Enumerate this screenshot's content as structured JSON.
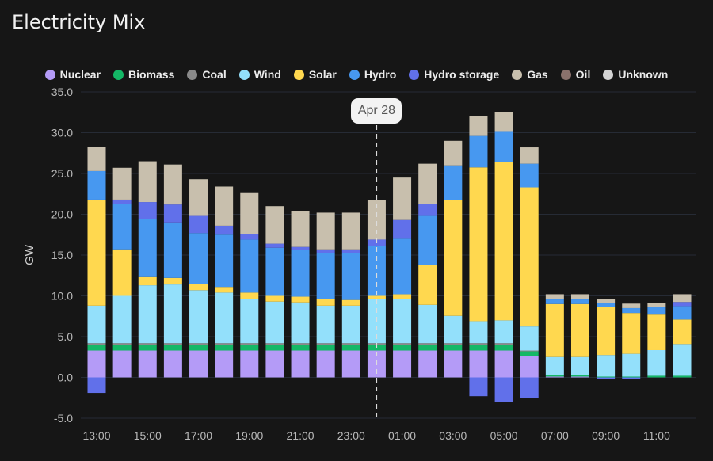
{
  "title": "Electricity Mix",
  "chart_data": {
    "type": "bar",
    "stacked": true,
    "ylabel": "GW",
    "xlabel": "",
    "ylim": [
      -5,
      35
    ],
    "yticks": [
      "35.0",
      "30.0",
      "25.0",
      "20.0",
      "15.0",
      "10.0",
      "5.0",
      "0.0",
      "-5.0"
    ],
    "ytick_values": [
      35,
      30,
      25,
      20,
      15,
      10,
      5,
      0,
      -5
    ],
    "grid": true,
    "legend_position": "top",
    "categories": [
      "13:00",
      "14:00",
      "15:00",
      "16:00",
      "17:00",
      "18:00",
      "19:00",
      "20:00",
      "21:00",
      "22:00",
      "23:00",
      "00:00",
      "01:00",
      "02:00",
      "03:00",
      "04:00",
      "05:00",
      "06:00",
      "07:00",
      "08:00",
      "09:00",
      "10:00",
      "11:00",
      "12:00"
    ],
    "xtick_labels": [
      "13:00",
      "15:00",
      "17:00",
      "19:00",
      "21:00",
      "23:00",
      "01:00",
      "03:00",
      "05:00",
      "07:00",
      "09:00",
      "11:00"
    ],
    "annotation": {
      "label": "Apr 28",
      "at": "00:00"
    },
    "series": [
      {
        "name": "Nuclear",
        "color": "#b49bf7",
        "values": [
          3.3,
          3.3,
          3.3,
          3.3,
          3.3,
          3.3,
          3.3,
          3.3,
          3.3,
          3.3,
          3.3,
          3.3,
          3.3,
          3.3,
          3.3,
          3.3,
          3.3,
          2.6,
          0.1,
          0.1,
          0,
          0,
          0,
          0
        ]
      },
      {
        "name": "Biomass",
        "color": "#14b866",
        "values": [
          0.7,
          0.7,
          0.7,
          0.7,
          0.7,
          0.7,
          0.7,
          0.7,
          0.7,
          0.7,
          0.7,
          0.7,
          0.7,
          0.7,
          0.7,
          0.7,
          0.7,
          0.6,
          0.2,
          0.2,
          0.1,
          0.1,
          0.2,
          0.2
        ]
      },
      {
        "name": "Coal",
        "color": "#8a8a8a",
        "values": [
          0.2,
          0.2,
          0.2,
          0.2,
          0.2,
          0.2,
          0.2,
          0.2,
          0.2,
          0.2,
          0.2,
          0.2,
          0.2,
          0.2,
          0.2,
          0.2,
          0.2,
          0.1,
          0,
          0,
          0,
          0,
          0,
          0
        ]
      },
      {
        "name": "Wind",
        "color": "#93e0fb",
        "values": [
          4.6,
          5.8,
          7.1,
          7.2,
          6.5,
          6.2,
          5.4,
          5.1,
          5.0,
          4.6,
          4.6,
          5.4,
          5.45,
          4.7,
          3.35,
          2.7,
          2.8,
          2.95,
          2.2,
          2.2,
          2.65,
          2.8,
          3.15,
          3.9
        ]
      },
      {
        "name": "Solar",
        "color": "#ffd84f",
        "values": [
          13.0,
          5.7,
          1.0,
          0.8,
          0.8,
          0.7,
          0.8,
          0.7,
          0.7,
          0.8,
          0.7,
          0.4,
          0.55,
          4.9,
          14.15,
          18.85,
          19.4,
          17.05,
          6.5,
          6.5,
          5.85,
          5.0,
          4.35,
          3.0
        ]
      },
      {
        "name": "Hydro",
        "color": "#4798f0",
        "values": [
          3.5,
          5.6,
          7.1,
          6.8,
          6.2,
          6.4,
          6.5,
          5.9,
          5.7,
          5.6,
          5.7,
          6.1,
          6.8,
          6.0,
          4.3,
          3.85,
          3.7,
          2.9,
          0.6,
          0.6,
          0.55,
          0.6,
          0.9,
          1.65
        ]
      },
      {
        "name": "Hydro storage",
        "color": "#6170ea",
        "values": [
          -1.9,
          0.5,
          2.1,
          2.2,
          2.1,
          1.1,
          0.7,
          0.5,
          0.4,
          0.5,
          0.5,
          0.8,
          2.3,
          1.5,
          0,
          -2.3,
          -3.0,
          -2.5,
          0,
          0,
          -0.2,
          -0.2,
          0,
          0.5
        ]
      },
      {
        "name": "Gas",
        "color": "#c8bfad",
        "values": [
          3.0,
          3.9,
          5.0,
          4.9,
          4.5,
          4.8,
          5.0,
          4.6,
          4.4,
          4.5,
          4.5,
          4.8,
          5.2,
          4.9,
          3.0,
          2.4,
          2.4,
          2.0,
          0.6,
          0.6,
          0.5,
          0.55,
          0.55,
          0.95
        ]
      },
      {
        "name": "Oil",
        "color": "#8a716c",
        "values": [
          0,
          0,
          0,
          0,
          0,
          0,
          0,
          0,
          0,
          0,
          0,
          0,
          0,
          0,
          0,
          0,
          0,
          0,
          0,
          0,
          0,
          0,
          0,
          0
        ]
      },
      {
        "name": "Unknown",
        "color": "#d4d4d4",
        "values": [
          0,
          0,
          0,
          0,
          0,
          0,
          0,
          0,
          0,
          0,
          0,
          0,
          0,
          0,
          0,
          0,
          0,
          0,
          0,
          0,
          0,
          0,
          0,
          0
        ]
      }
    ]
  }
}
